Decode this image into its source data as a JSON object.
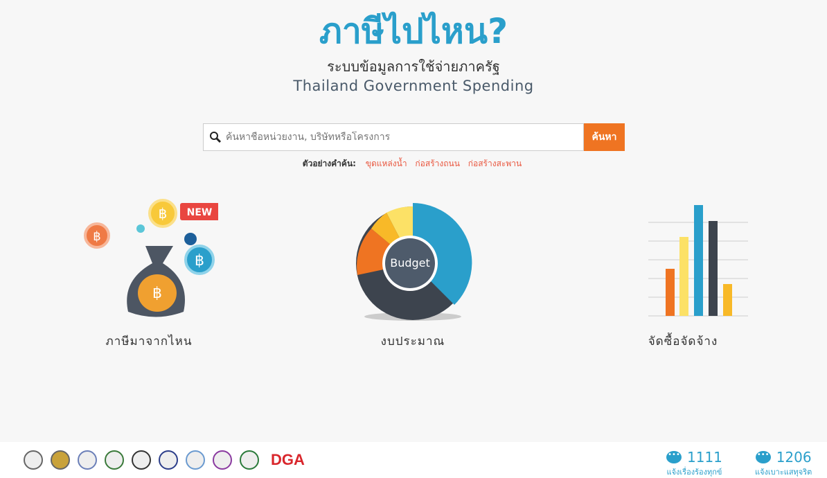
{
  "header": {
    "title": "ภาษีไปไหน?",
    "subtitle_th": "ระบบข้อมูลการใช้จ่ายภาครัฐ",
    "subtitle_en": "Thailand Government Spending"
  },
  "search": {
    "placeholder": "ค้นหาชื่อหน่วยงาน, บริษัทหรือโครงการ",
    "button": "ค้นหา",
    "examples_label": "ตัวอย่างคำค้น:",
    "examples": [
      "ขุดแหล่งน้ำ",
      "ก่อสร้างถนน",
      "ก่อสร้างสะพาน"
    ]
  },
  "cards": [
    {
      "label": "ภาษีมาจากไหน",
      "badge": "NEW",
      "icon": "money-bag-icon"
    },
    {
      "label": "งบประมาณ",
      "center_text": "Budget",
      "icon": "donut-chart-icon"
    },
    {
      "label": "จัดซื้อจัดจ้าง",
      "icon": "bar-chart-icon"
    }
  ],
  "footer": {
    "logo_text": "DGA",
    "stats": [
      {
        "count": "1111",
        "label": "แจ้งเรื่องร้องทุกข์"
      },
      {
        "count": "1206",
        "label": "แจ้งเบาะแสทุจริต"
      }
    ]
  },
  "colors": {
    "accent": "#2a9fcb",
    "button": "#ef7422",
    "link": "#e9573f"
  }
}
